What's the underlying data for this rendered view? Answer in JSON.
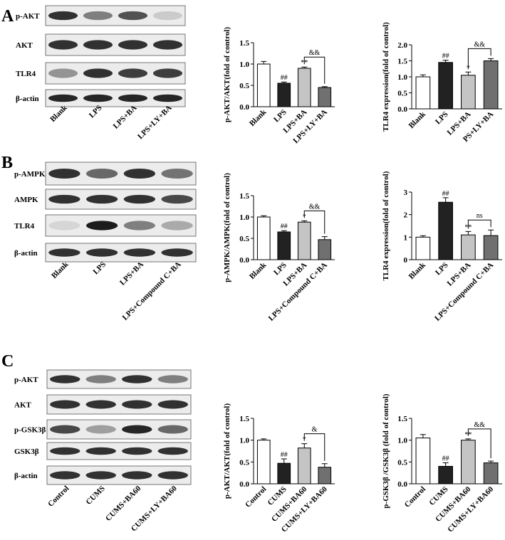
{
  "blots": [
    {
      "panel": "A",
      "rows": [
        "p-AKT",
        "AKT",
        "TLR4",
        "β-actin"
      ],
      "lanes": [
        "Blank",
        "LPS",
        "LPS+BA",
        "LPS+LY+BA"
      ]
    },
    {
      "panel": "B",
      "rows": [
        "p-AMPK",
        "AMPK",
        "TLR4",
        "β-actin"
      ],
      "lanes": [
        "Blank",
        "LPS",
        "LPS+BA",
        "LPS+Compound C+BA"
      ]
    },
    {
      "panel": "C",
      "rows": [
        "p-AKT",
        "AKT",
        "p-GSK3β",
        "GSK3β",
        "β-actin"
      ],
      "lanes": [
        "Control",
        "CUMS",
        "CUMS+BA60",
        "CUMS+LY+BA60"
      ]
    }
  ],
  "chart_data": [
    {
      "type": "bar",
      "y_label": "p-AKT/AKT(fold of control)",
      "categories": [
        "Blank",
        "LPS",
        "LPS+BA",
        "LPS+LY+BA"
      ],
      "values": [
        1.0,
        0.55,
        0.9,
        0.45
      ],
      "errors": [
        0.06,
        0.03,
        0.03,
        0.02
      ],
      "colors": [
        "#ffffff",
        "#222222",
        "#c4c4c4",
        "#707070"
      ],
      "significance": [
        null,
        "##",
        "**",
        null
      ],
      "bracket_label": "&&",
      "ylim": [
        0,
        1.5
      ],
      "yticks": [
        {
          "value": 0,
          "label": "0.0"
        },
        {
          "value": 0.5,
          "label": "0.5"
        },
        {
          "value": 1,
          "label": "1.0"
        },
        {
          "value": 1.5,
          "label": "1.5"
        }
      ]
    },
    {
      "type": "bar",
      "y_label": "TLR4 expression(fold of control)",
      "categories": [
        "Blank",
        "LPS",
        "LPS+BA",
        "PS+LY+BA"
      ],
      "values": [
        1.0,
        1.45,
        1.05,
        1.5
      ],
      "errors": [
        0.06,
        0.07,
        0.1,
        0.07
      ],
      "colors": [
        "#ffffff",
        "#222222",
        "#c4c4c4",
        "#707070"
      ],
      "significance": [
        null,
        "##",
        "*",
        null
      ],
      "bracket_label": "&&",
      "ylim": [
        0,
        2
      ],
      "yticks": [
        {
          "value": 0,
          "label": "0.0"
        },
        {
          "value": 0.5,
          "label": "0.5"
        },
        {
          "value": 1,
          "label": "1.0"
        },
        {
          "value": 1.5,
          "label": "1.5"
        },
        {
          "value": 2,
          "label": "2.0"
        }
      ]
    },
    {
      "type": "bar",
      "y_label": "p-AMPK/AMPK(fold of control)",
      "categories": [
        "Blank",
        "LPS",
        "LPS+BA",
        "LPS+Compound C+BA"
      ],
      "values": [
        1.0,
        0.65,
        0.88,
        0.47
      ],
      "errors": [
        0.03,
        0.03,
        0.03,
        0.07
      ],
      "colors": [
        "#ffffff",
        "#222222",
        "#c4c4c4",
        "#707070"
      ],
      "significance": [
        null,
        "##",
        "*",
        null
      ],
      "bracket_label": "&&",
      "ylim": [
        0,
        1.5
      ],
      "yticks": [
        {
          "value": 0,
          "label": "0.0"
        },
        {
          "value": 0.5,
          "label": "0.5"
        },
        {
          "value": 1,
          "label": "1.0"
        },
        {
          "value": 1.5,
          "label": "1.5"
        }
      ]
    },
    {
      "type": "bar",
      "y_label": "TLR4 expression(fold of control)",
      "categories": [
        "Blank",
        "LPS",
        "LPS+BA",
        "LPS+Compound C+BA"
      ],
      "values": [
        1.0,
        2.55,
        1.1,
        1.07
      ],
      "errors": [
        0.06,
        0.2,
        0.15,
        0.25
      ],
      "colors": [
        "#ffffff",
        "#222222",
        "#c4c4c4",
        "#707070"
      ],
      "significance": [
        null,
        "##",
        "**",
        null
      ],
      "bracket_label": "ns",
      "ylim": [
        0,
        3
      ],
      "yticks": [
        0,
        1,
        2,
        3
      ]
    },
    {
      "type": "bar",
      "y_label": "p-AKT/AKT(fold of control)",
      "categories": [
        "Control",
        "CUMS",
        "CUMS+BA60",
        "CUMS+LY+BA60"
      ],
      "values": [
        1.0,
        0.47,
        0.82,
        0.38
      ],
      "errors": [
        0.03,
        0.1,
        0.1,
        0.08
      ],
      "colors": [
        "#ffffff",
        "#222222",
        "#c4c4c4",
        "#707070"
      ],
      "significance": [
        null,
        "##",
        "*",
        null
      ],
      "bracket_label": "&",
      "ylim": [
        0,
        1.5
      ],
      "yticks": [
        {
          "value": 0,
          "label": "0.0"
        },
        {
          "value": 0.5,
          "label": "0.5"
        },
        {
          "value": 1,
          "label": "1.0"
        },
        {
          "value": 1.5,
          "label": "1.5"
        }
      ]
    },
    {
      "type": "bar",
      "y_label": "p-GSK3β /GSK3β (fold of control)",
      "categories": [
        "Control",
        "CUMS",
        "CUMS+BA60",
        "CUMS+LY+BA60"
      ],
      "values": [
        1.05,
        0.4,
        1.0,
        0.48
      ],
      "errors": [
        0.08,
        0.08,
        0.03,
        0.04
      ],
      "colors": [
        "#ffffff",
        "#222222",
        "#c4c4c4",
        "#707070"
      ],
      "significance": [
        null,
        "##",
        "**",
        null
      ],
      "bracket_label": "&&",
      "ylim": [
        0,
        1.5
      ],
      "yticks": [
        {
          "value": 0,
          "label": "0.0"
        },
        {
          "value": 0.5,
          "label": "0.5"
        },
        {
          "value": 1,
          "label": "1.0"
        },
        {
          "value": 1.5,
          "label": "1.5"
        }
      ]
    }
  ]
}
